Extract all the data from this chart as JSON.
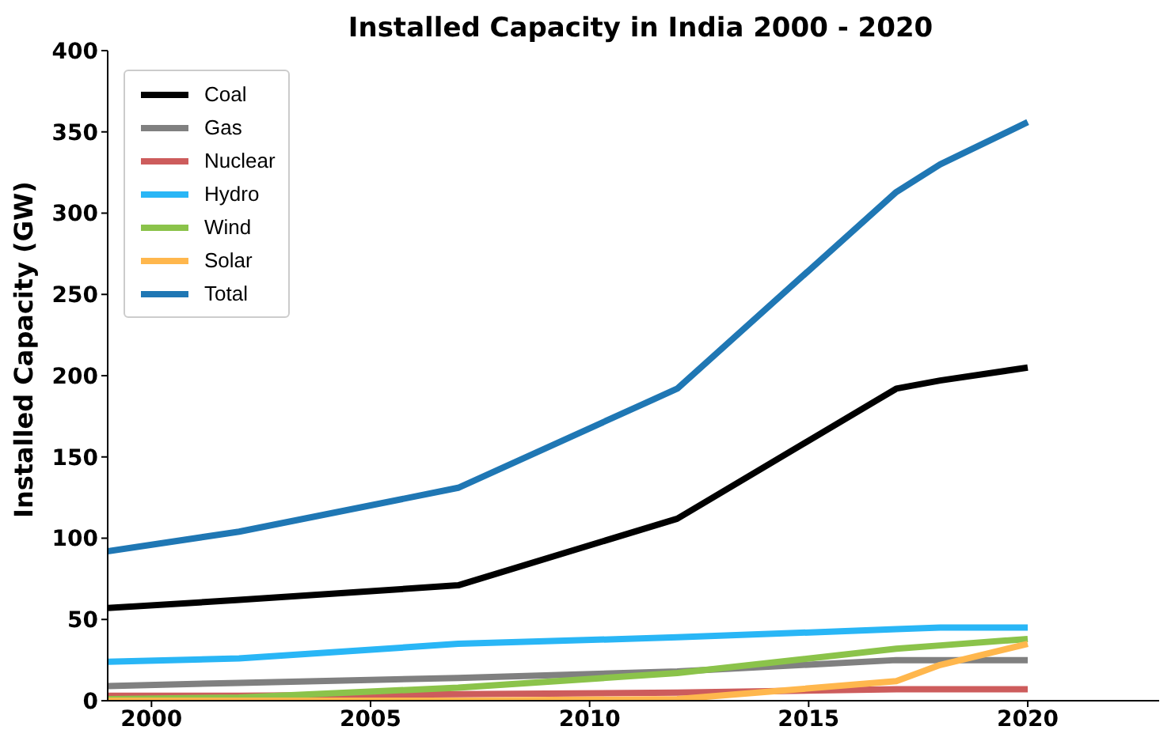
{
  "chart_data": {
    "type": "line",
    "title": "Installed Capacity in India 2000 - 2020",
    "ylabel": "Installed Capacity (GW)",
    "x": [
      1999,
      2002,
      2007,
      2012,
      2017,
      2018,
      2020
    ],
    "series": [
      {
        "name": "Coal",
        "color": "#000000",
        "values": [
          57,
          62,
          71,
          112,
          192,
          197,
          205
        ]
      },
      {
        "name": "Gas",
        "color": "#808080",
        "values": [
          9,
          11,
          14,
          18,
          25,
          25,
          25
        ]
      },
      {
        "name": "Nuclear",
        "color": "#cd5c5c",
        "values": [
          3,
          3,
          4,
          5,
          7,
          7,
          7
        ]
      },
      {
        "name": "Hydro",
        "color": "#29b6f6",
        "values": [
          24,
          26,
          35,
          39,
          44,
          45,
          45
        ]
      },
      {
        "name": "Wind",
        "color": "#8bc34a",
        "values": [
          1,
          2,
          8,
          17,
          32,
          34,
          38
        ]
      },
      {
        "name": "Solar",
        "color": "#ffb74d",
        "values": [
          0,
          0,
          0,
          1,
          12,
          22,
          35
        ]
      },
      {
        "name": "Total",
        "color": "#1f77b4",
        "values": [
          92,
          104,
          131,
          192,
          313,
          330,
          356
        ]
      }
    ],
    "xlim": [
      1999,
      2023
    ],
    "xticks": [
      2000,
      2005,
      2010,
      2015,
      2020
    ],
    "ylim": [
      0,
      400
    ],
    "yticks": [
      0,
      50,
      100,
      150,
      200,
      250,
      300,
      350,
      400
    ],
    "grid": false,
    "legend": "top left",
    "marker": "none",
    "line_style": "solid"
  }
}
